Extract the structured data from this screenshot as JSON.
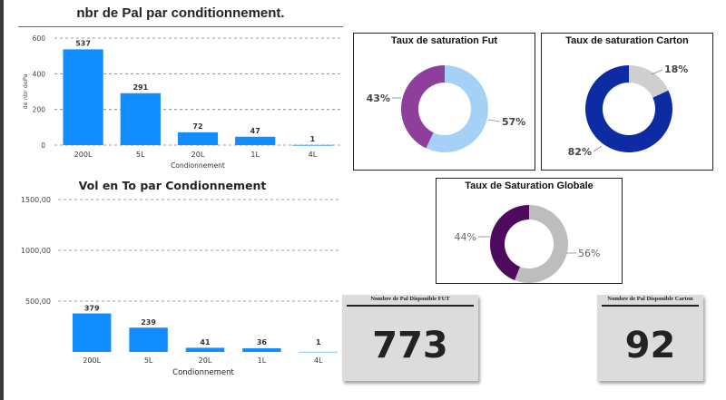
{
  "colors": {
    "bar": "#118DFF",
    "grid": "#7f7f7f",
    "fut_full": "#8E3F9C",
    "fut_empty": "#A6D1F7",
    "carton_full": "#0D2BA3",
    "carton_empty": "#CFCFCF",
    "global_full": "#4E0A5C",
    "global_empty": "#BDBDBD",
    "kpi_bg": "#DCDCDC"
  },
  "chart_data": [
    {
      "type": "bar",
      "title": "nbr de Pal par conditionnement.",
      "xlabel": "Condionnement",
      "ylabel": "de nbr dePa",
      "categories": [
        "200L",
        "5L",
        "20L",
        "1L",
        "4L"
      ],
      "values": [
        537,
        291,
        72,
        47,
        1
      ],
      "data_labels": [
        "537",
        "291",
        "72",
        "47",
        "1"
      ],
      "yticks": [
        "0",
        "200",
        "400",
        "600"
      ],
      "ylim": [
        0,
        600
      ],
      "grid": true
    },
    {
      "type": "bar",
      "title": "Vol en To par Condionnement",
      "xlabel": "Condionnement",
      "categories": [
        "200L",
        "5L",
        "20L",
        "1L",
        "4L"
      ],
      "values": [
        379,
        239,
        41,
        36,
        1
      ],
      "data_labels": [
        "379",
        "239",
        "41",
        "36",
        "1"
      ],
      "yticks": [
        "500,00",
        "1000,00",
        "1500,00"
      ],
      "ylim": [
        0,
        1500
      ],
      "grid": true
    },
    {
      "type": "pie",
      "title": "Taux de saturation Fut",
      "values": [
        43,
        57
      ],
      "labels": [
        "43%",
        "57%"
      ]
    },
    {
      "type": "pie",
      "title": "Taux de saturation Carton",
      "values": [
        82,
        18
      ],
      "labels": [
        "82%",
        "18%"
      ]
    },
    {
      "type": "pie",
      "title": "Taux de Saturation Globale",
      "values": [
        44,
        56
      ],
      "labels": [
        "44%",
        "56%"
      ]
    }
  ],
  "kpis": {
    "fut": {
      "label": "Nombre de Pal Disponible FUT",
      "value": "773"
    },
    "carton": {
      "label": "Nombre de Pal Disponible Carton",
      "value": "92"
    }
  }
}
